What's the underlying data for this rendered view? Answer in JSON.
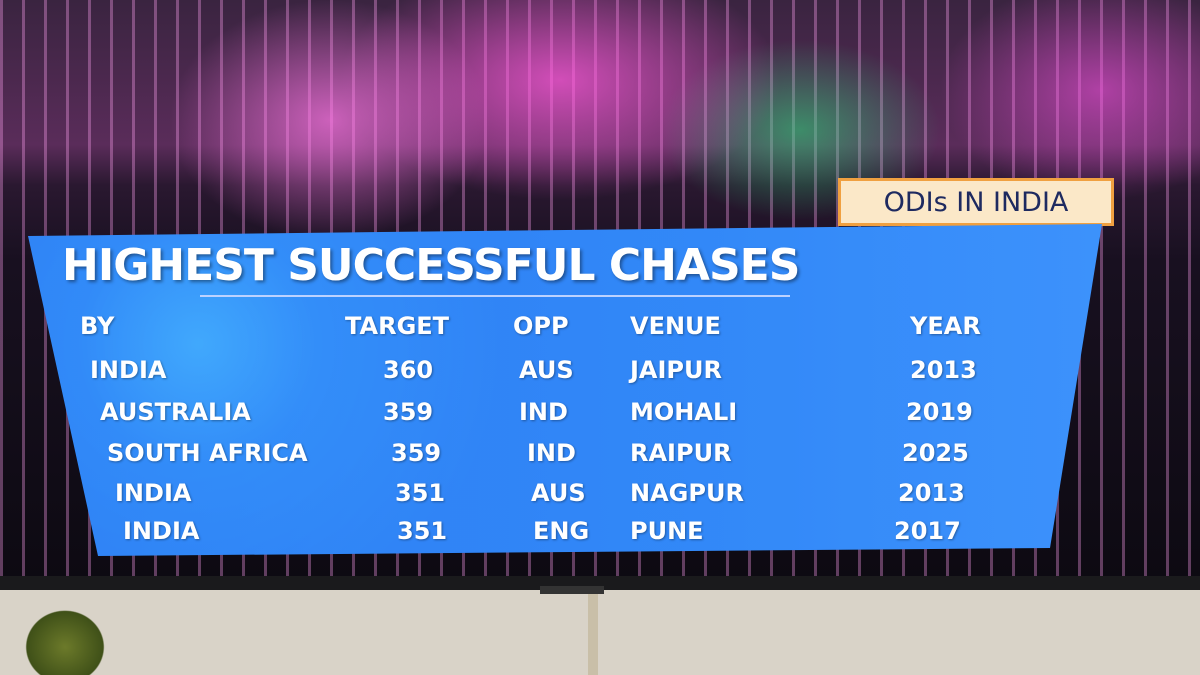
{
  "tag": "ODIs IN INDIA",
  "title": "HIGHEST SUCCESSFUL CHASES",
  "table": {
    "header": [
      "BY",
      "TARGET",
      "OPP",
      "VENUE",
      "YEAR"
    ],
    "rows": [
      [
        "INDIA",
        360,
        "AUS",
        "JAIPUR",
        2013
      ],
      [
        "AUSTRALIA",
        359,
        "IND",
        "MOHALI",
        2019
      ],
      [
        "SOUTH AFRICA",
        359,
        "IND",
        "RAIPUR",
        2025
      ],
      [
        "INDIA",
        351,
        "AUS",
        "NAGPUR",
        2013
      ],
      [
        "INDIA",
        351,
        "ENG",
        "PUNE",
        2017
      ]
    ]
  }
}
